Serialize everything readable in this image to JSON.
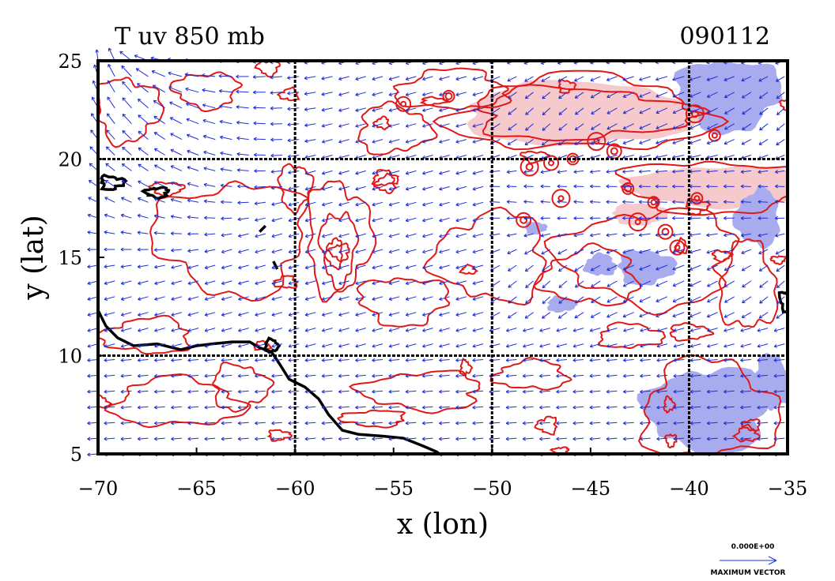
{
  "chart_data": {
    "type": "vector-contour-map",
    "title": "T uv 850 mb",
    "date_label": "090112",
    "xlabel": "x (lon)",
    "ylabel": "y (lat)",
    "xlim": [
      -70,
      -35
    ],
    "ylim": [
      5,
      25
    ],
    "x_ticks": [
      -70,
      -65,
      -60,
      -55,
      -50,
      -45,
      -40,
      -35
    ],
    "y_ticks": [
      5,
      10,
      15,
      20,
      25
    ],
    "x_tick_labels": [
      "−70",
      "−65",
      "−60",
      "−55",
      "−50",
      "−45",
      "−40",
      "−35"
    ],
    "y_tick_labels": [
      "5",
      "10",
      "15",
      "20",
      "25"
    ],
    "grid_lon": [
      -60,
      -50,
      -40
    ],
    "grid_lat": [
      10,
      20
    ],
    "grid": true,
    "vector_reference": {
      "value_label": "0.000E+00",
      "caption": "MAXIMUM VECTOR"
    },
    "colors": {
      "vectors": "#1f2fd8",
      "contours": "#e01818",
      "warm_fill": "#f6c9cc",
      "cool_fill": "#a8acef",
      "coastline": "#000000",
      "frame": "#000000"
    },
    "warm_regions": [
      {
        "name": "north-east warm band",
        "lon": [
          -50,
          -35
        ],
        "lat": [
          19,
          25
        ]
      }
    ],
    "cool_regions": [
      {
        "name": "north-east cool patch",
        "lon": [
          -41,
          -35
        ],
        "lat": [
          21,
          25
        ]
      },
      {
        "name": "central cool patches",
        "lon": [
          -47,
          -38
        ],
        "lat": [
          12,
          18
        ]
      },
      {
        "name": "south-east cool region",
        "lon": [
          -42,
          -35
        ],
        "lat": [
          5,
          10
        ]
      }
    ]
  }
}
